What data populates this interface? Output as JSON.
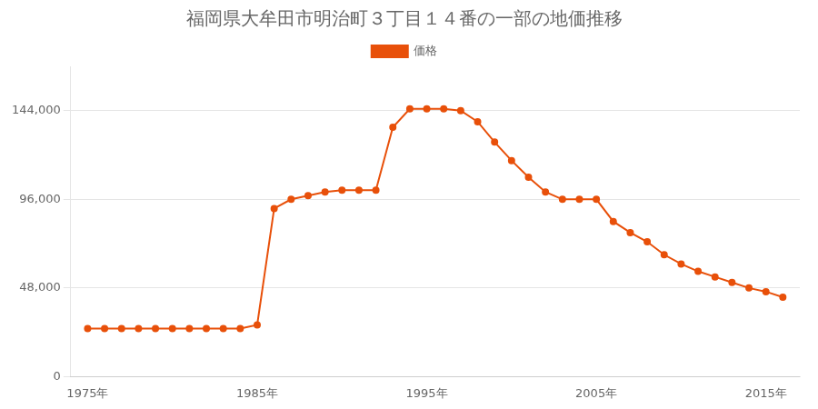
{
  "chart_data": {
    "type": "line",
    "title": "福岡県大牟田市明治町３丁目１４番の一部の地価推移",
    "x": [
      1975,
      1976,
      1977,
      1978,
      1979,
      1980,
      1981,
      1982,
      1983,
      1984,
      1985,
      1986,
      1987,
      1988,
      1989,
      1990,
      1991,
      1992,
      1993,
      1994,
      1995,
      1996,
      1997,
      1998,
      1999,
      2000,
      2001,
      2002,
      2003,
      2004,
      2005,
      2006,
      2007,
      2008,
      2009,
      2010,
      2011,
      2012,
      2013,
      2014,
      2015,
      2016
    ],
    "series": [
      {
        "name": "価格",
        "color": "#e8500a",
        "marker": "circle",
        "values": [
          26000,
          26000,
          26000,
          26000,
          26000,
          26000,
          26000,
          26000,
          26000,
          26000,
          28000,
          91000,
          96000,
          98000,
          100000,
          101000,
          101000,
          101000,
          135000,
          145000,
          145000,
          145000,
          144000,
          138000,
          127000,
          117000,
          108000,
          100000,
          96000,
          96000,
          96000,
          84000,
          78000,
          73000,
          66000,
          61000,
          57000,
          54000,
          51000,
          48000,
          46000,
          43000
        ]
      }
    ],
    "xlim": [
      1974,
      2017
    ],
    "xticks": [
      {
        "value": 1975,
        "label": "1975年"
      },
      {
        "value": 1985,
        "label": "1985年"
      },
      {
        "value": 1995,
        "label": "1995年"
      },
      {
        "value": 2005,
        "label": "2005年"
      },
      {
        "value": 2015,
        "label": "2015年"
      }
    ],
    "ylim": [
      0,
      168000
    ],
    "yticks": [
      0,
      {
        "value": 48000,
        "label": "48,000"
      },
      {
        "value": 96000,
        "label": "96,000"
      },
      {
        "value": 144000,
        "label": "144,000"
      }
    ],
    "grid": "y",
    "legend": "top"
  }
}
